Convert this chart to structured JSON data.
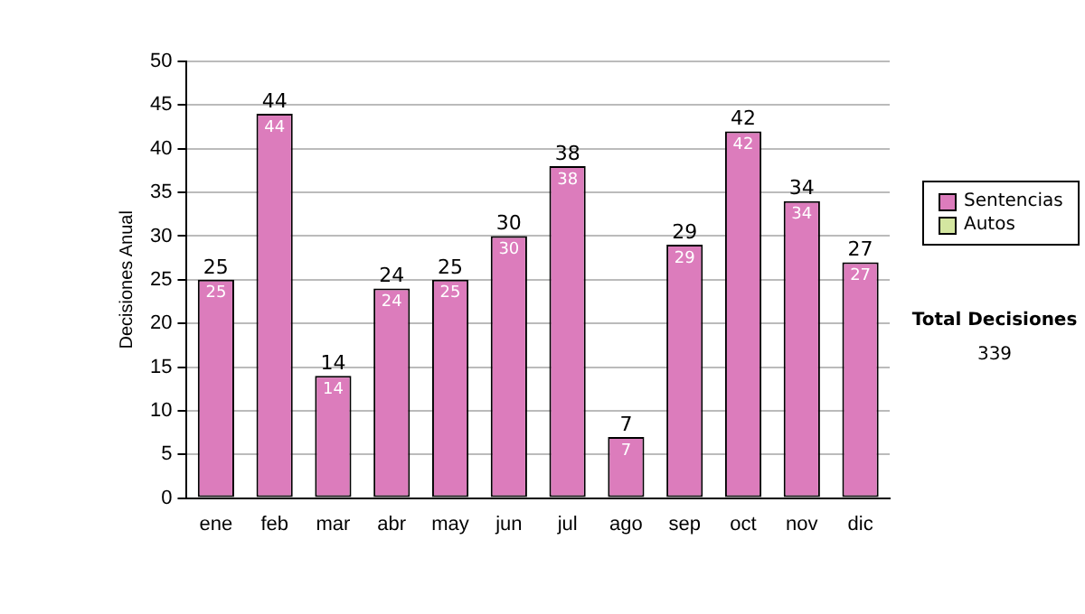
{
  "chart_data": {
    "type": "bar",
    "ylabel": "Decisiones Anual",
    "categories": [
      "ene",
      "feb",
      "mar",
      "abr",
      "may",
      "jun",
      "jul",
      "ago",
      "sep",
      "oct",
      "nov",
      "dic"
    ],
    "series": [
      {
        "name": "Sentencias",
        "color": "#dc7cbc",
        "values": [
          25,
          44,
          14,
          24,
          25,
          30,
          38,
          7,
          29,
          42,
          34,
          27
        ]
      },
      {
        "name": "Autos",
        "color": "#d4e6a0",
        "values": [
          null,
          null,
          null,
          null,
          null,
          null,
          null,
          null,
          null,
          null,
          null,
          null
        ]
      }
    ],
    "stacked": true,
    "data_labels": true,
    "totals": [
      "25",
      "44",
      "14",
      "24",
      "25",
      "30",
      "38",
      "7",
      "29",
      "42",
      "34",
      "27"
    ],
    "ylim": [
      0,
      50
    ],
    "yticks": [
      0,
      5,
      10,
      15,
      20,
      25,
      30,
      35,
      40,
      45,
      50
    ],
    "grid": "y",
    "legend": "right",
    "annotations": [
      "Total Decisiones",
      "339"
    ]
  }
}
